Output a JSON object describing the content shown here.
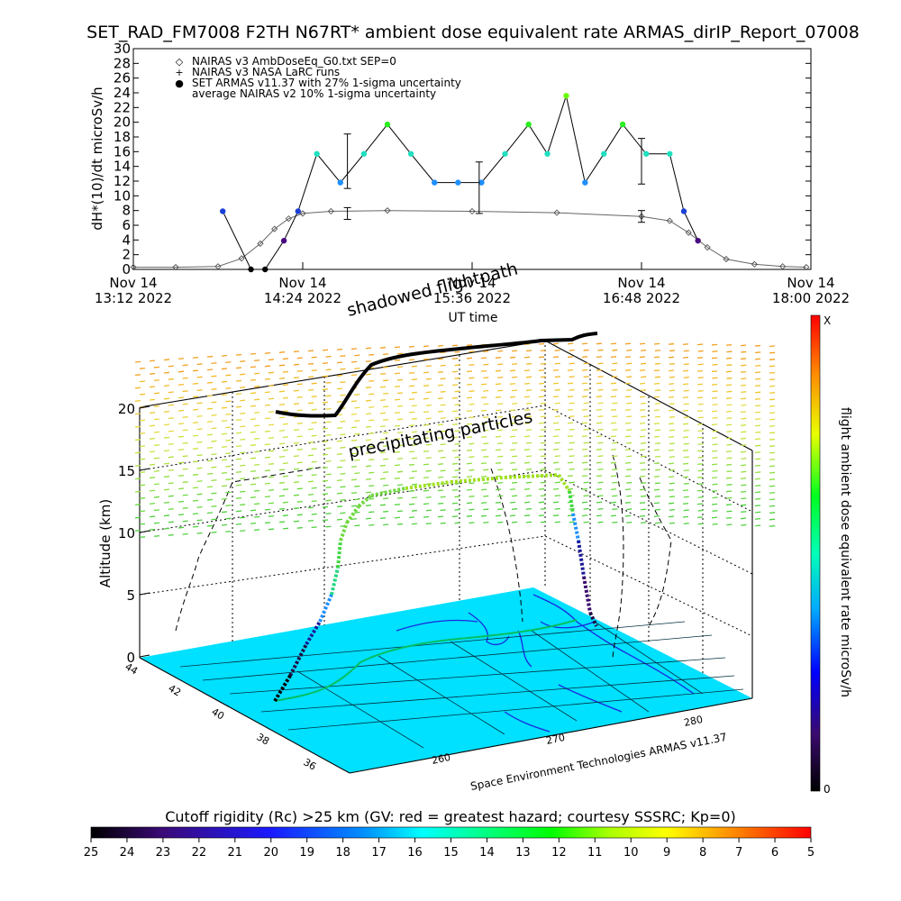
{
  "figure": {
    "title": "SET_RAD_FM7008  F2TH N67RT* ambient dose equivalent rate ARMAS_dirIP_Report_07008",
    "credit": "Space Environment Technologies ARMAS v11.37",
    "shadow_label": "shadowed flightpath",
    "precip_label": "precipitating particles"
  },
  "chart_data": [
    {
      "type": "scatter",
      "ylabel": "dH*(10)/dt microSv/h",
      "xlabel": "UT time",
      "xlim": [
        "2022-11-14T13:12",
        "2022-11-14T18:00"
      ],
      "ylim": [
        0,
        30
      ],
      "yticks": [
        "0",
        "2",
        "4",
        "6",
        "8",
        "10",
        "12",
        "14",
        "16",
        "18",
        "20",
        "22",
        "24",
        "26",
        "28",
        "30"
      ],
      "xticks": [
        {
          "top": "Nov 14",
          "bottom": "13:12 2022",
          "t": "2022-11-14T13:12"
        },
        {
          "top": "Nov 14",
          "bottom": "14:24 2022",
          "t": "2022-11-14T14:24"
        },
        {
          "top": "Nov 14",
          "bottom": "15:36 2022",
          "t": "2022-11-14T15:36"
        },
        {
          "top": "Nov 14",
          "bottom": "16:48 2022",
          "t": "2022-11-14T16:48"
        },
        {
          "top": "Nov 14",
          "bottom": "18:00 2022",
          "t": "2022-11-14T18:00"
        }
      ],
      "legend": [
        {
          "symbol": "◇",
          "label": "NAIRAS v3 AmbDoseEq_G0.txt SEP=0",
          "color": "#000000"
        },
        {
          "symbol": "+",
          "label": "NAIRAS v3 NASA LaRC runs",
          "color": "#000000"
        },
        {
          "symbol": "●",
          "label": "SET ARMAS v11.37 with 27% 1-sigma uncertainty",
          "color": "#1f4fe0"
        },
        {
          "symbol": "",
          "label": "average NAIRAS v2 10% 1-sigma uncertainty",
          "color": "#000000"
        }
      ],
      "legend_position": "top-left",
      "series": [
        {
          "name": "NAIRAS v3 AmbDoseEq_G0.txt SEP=0",
          "marker": "diamond",
          "x": [
            "2022-11-14T13:12",
            "2022-11-14T13:30",
            "2022-11-14T13:48",
            "2022-11-14T13:58",
            "2022-11-14T14:06",
            "2022-11-14T14:12",
            "2022-11-14T14:18",
            "2022-11-14T14:24",
            "2022-11-14T14:36",
            "2022-11-14T15:00",
            "2022-11-14T15:36",
            "2022-11-14T16:12",
            "2022-11-14T16:48",
            "2022-11-14T17:00",
            "2022-11-14T17:08",
            "2022-11-14T17:16",
            "2022-11-14T17:24",
            "2022-11-14T17:36",
            "2022-11-14T17:48",
            "2022-11-14T17:58"
          ],
          "y": [
            0.3,
            0.3,
            0.4,
            1.5,
            3.5,
            5.5,
            6.9,
            7.6,
            7.9,
            8.0,
            7.9,
            7.7,
            7.2,
            6.6,
            5.0,
            3.0,
            1.4,
            0.7,
            0.4,
            0.3
          ]
        },
        {
          "name": "SET ARMAS v11.37 with 27% 1-sigma uncertainty",
          "marker": "dot",
          "x": [
            "2022-11-14T13:50",
            "2022-11-14T14:02",
            "2022-11-14T14:08",
            "2022-11-14T14:16",
            "2022-11-14T14:22",
            "2022-11-14T14:30",
            "2022-11-14T14:40",
            "2022-11-14T14:50",
            "2022-11-14T15:00",
            "2022-11-14T15:10",
            "2022-11-14T15:20",
            "2022-11-14T15:30",
            "2022-11-14T15:40",
            "2022-11-14T15:50",
            "2022-11-14T16:00",
            "2022-11-14T16:08",
            "2022-11-14T16:16",
            "2022-11-14T16:24",
            "2022-11-14T16:32",
            "2022-11-14T16:40",
            "2022-11-14T16:50",
            "2022-11-14T17:00",
            "2022-11-14T17:06",
            "2022-11-14T17:12"
          ],
          "y": [
            7.9,
            0.0,
            0.0,
            3.9,
            7.9,
            15.7,
            11.8,
            15.7,
            19.7,
            15.7,
            11.8,
            11.8,
            11.8,
            15.7,
            19.7,
            15.7,
            23.6,
            11.8,
            15.7,
            19.7,
            15.7,
            15.7,
            7.9,
            3.9
          ]
        }
      ],
      "error_bars": [
        {
          "t": "2022-11-14T14:43",
          "y": 7.6,
          "low": 6.8,
          "high": 8.4
        },
        {
          "t": "2022-11-14T14:43",
          "y": 13.0,
          "low": 11.0,
          "high": 18.4
        },
        {
          "t": "2022-11-14T15:39",
          "y": 8.6,
          "low": 7.6,
          "high": 14.6
        },
        {
          "t": "2022-11-14T16:48",
          "y": 7.2,
          "low": 6.4,
          "high": 8.0
        },
        {
          "t": "2022-11-14T16:48",
          "y": 15.0,
          "low": 11.6,
          "high": 17.8
        }
      ],
      "grid": false
    },
    {
      "type": "scatter",
      "ylabel": "Altitude (km)",
      "zticks": [
        "0",
        "5",
        "10",
        "15",
        "20"
      ],
      "lat_ticks": [
        "44",
        "42",
        "40",
        "38",
        "36"
      ],
      "lon_ticks": [
        "260",
        "270",
        "280"
      ],
      "colorbar_label": "flight ambient dose equivalent rate microSv/h",
      "colorbar_top": "X",
      "colorbar_bottom": "0",
      "colorbar_colors": [
        "#000000",
        "#2a0a5e",
        "#0000ff",
        "#00a0ff",
        "#00ffb0",
        "#00ff00",
        "#ffff00",
        "#ff8000",
        "#ff0000"
      ],
      "flight_dose_trace": [
        0,
        1,
        3,
        5,
        7,
        8,
        9,
        9,
        9,
        9,
        10,
        10,
        10,
        10,
        8,
        5,
        3,
        2,
        1,
        0
      ],
      "grid": true
    },
    {
      "type": "heatmap",
      "colorbar_label": "Cutoff rigidity (Rc) >25 km (GV: red = greatest hazard; courtesy SSSRC; Kp=0)",
      "colorbar_ticks": [
        "25",
        "24",
        "23",
        "22",
        "21",
        "20",
        "19",
        "18",
        "17",
        "16",
        "15",
        "14",
        "13",
        "12",
        "11",
        "10",
        "9",
        "8",
        "7",
        "6",
        "5"
      ],
      "colorbar_colors": [
        "#000000",
        "#3b0a78",
        "#1a1aff",
        "#0090ff",
        "#00ffff",
        "#00ff80",
        "#00ff00",
        "#aaff00",
        "#ffff00",
        "#ff8000",
        "#ff0000"
      ]
    }
  ]
}
